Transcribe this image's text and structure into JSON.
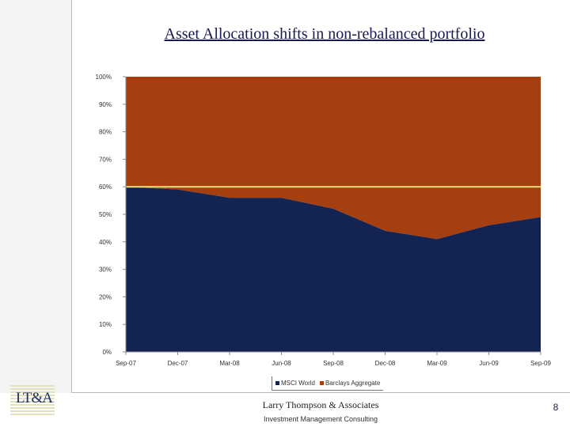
{
  "slide": {
    "title": "Asset Allocation shifts in non-rebalanced portfolio",
    "firm": "Larry Thompson & Associates",
    "subtitle": "Investment Management Consulting",
    "page_number": "8",
    "logo_text": "LT&A"
  },
  "colors": {
    "msci_world": "#142452",
    "barclays": "#a63f10",
    "reference_line": "#e8e27a",
    "logo_stripes": "#e4e1c0"
  },
  "chart_data": {
    "type": "area",
    "stacked": true,
    "percent": true,
    "title": "",
    "categories": [
      "Sep-07",
      "Dec-07",
      "Mar-08",
      "Jun-08",
      "Sep-08",
      "Dec-08",
      "Mar-09",
      "Jun-09",
      "Sep-09"
    ],
    "series": [
      {
        "name": "MSCI World",
        "values": [
          60,
          59,
          56,
          56,
          52,
          44,
          41,
          46,
          49
        ]
      },
      {
        "name": "Barclays Aggregate",
        "values": [
          40,
          41,
          44,
          44,
          48,
          56,
          59,
          54,
          51
        ]
      }
    ],
    "reference_line": {
      "value": 60
    },
    "ylim": [
      0,
      100
    ],
    "yticks": [
      "0%",
      "10%",
      "20%",
      "30%",
      "40%",
      "50%",
      "60%",
      "70%",
      "80%",
      "90%",
      "100%"
    ],
    "grid": false,
    "legend_position": "bottom"
  }
}
